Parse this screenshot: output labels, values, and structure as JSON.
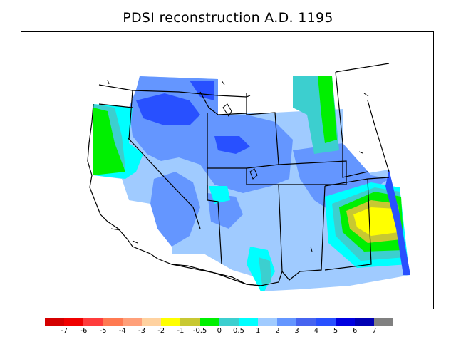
{
  "title": "PDSI reconstruction A.D. 1195",
  "legend": {
    "colors": [
      "#d40000",
      "#f00000",
      "#ff3c3c",
      "#ff7a52",
      "#ffa07a",
      "#ffd2a0",
      "#ffff00",
      "#c8c832",
      "#00f000",
      "#3ccfcf",
      "#00ffff",
      "#a0cbff",
      "#6496ff",
      "#4664f0",
      "#2850ff",
      "#0000e0",
      "#0000b4",
      "#808080"
    ],
    "ticks": [
      "-7",
      "-6",
      "-5",
      "-4",
      "-3",
      "-2",
      "-1",
      "-0.5",
      "0",
      "0.5",
      "1",
      "2",
      "3",
      "4",
      "5",
      "6",
      "7"
    ]
  },
  "map": {
    "region": "Western United States",
    "colors": {
      "light_blue": "#a0cbff",
      "mid_blue": "#6496ff",
      "dark_blue": "#2850ff",
      "cyan": "#00ffff",
      "teal": "#3ccfcf",
      "green": "#00f000",
      "olive": "#c8c832",
      "yellow": "#ffff00",
      "outline": "#000000"
    }
  }
}
